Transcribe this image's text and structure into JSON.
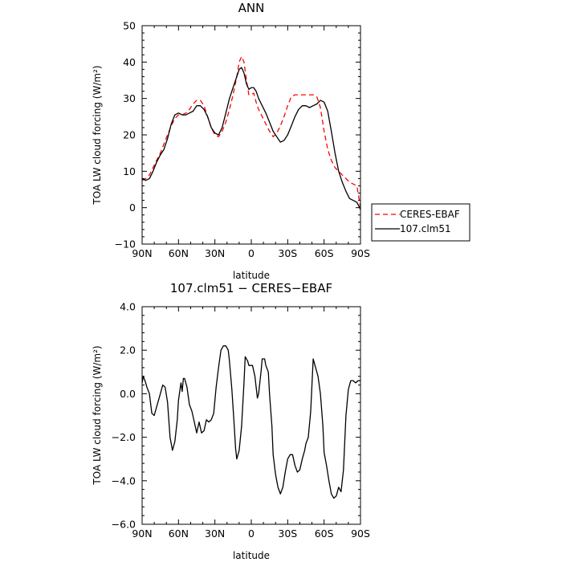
{
  "chart_data": [
    {
      "type": "line",
      "title": "ANN",
      "xlabel": "latitude",
      "ylabel": "TOA LW cloud forcing (W/m²)",
      "xlim": [
        90,
        -90
      ],
      "ylim": [
        -10,
        50
      ],
      "x_ticks": [
        90,
        60,
        30,
        0,
        -30,
        -60,
        -90
      ],
      "x_tick_labels": [
        "90N",
        "60N",
        "30N",
        "0",
        "30S",
        "60S",
        "90S"
      ],
      "y_ticks": [
        -10,
        0,
        10,
        20,
        30,
        40,
        50
      ],
      "y_tick_labels": [
        "−10",
        "0",
        "10",
        "20",
        "30",
        "40",
        "50"
      ],
      "legend": {
        "placement": "right",
        "entries": [
          "CERES-EBAF",
          "107.clm51"
        ]
      },
      "series": [
        {
          "name": "CERES-EBAF",
          "color": "#ff0000",
          "dash": "dashed",
          "x": [
            90,
            87,
            84,
            81,
            78,
            75,
            72,
            69,
            66,
            63,
            60,
            57,
            54,
            51,
            48,
            45,
            42,
            39,
            36,
            33,
            30,
            27,
            24,
            21,
            18,
            15,
            12,
            10,
            8,
            6,
            4,
            2,
            0,
            -2,
            -4,
            -6,
            -9,
            -12,
            -15,
            -18,
            -21,
            -24,
            -27,
            -30,
            -33,
            -36,
            -39,
            -42,
            -45,
            -48,
            -51,
            -54,
            -57,
            -60,
            -63,
            -66,
            -69,
            -72,
            -75,
            -78,
            -81,
            -84,
            -87,
            -90
          ],
          "y": [
            7.5,
            8.0,
            9.0,
            11.0,
            13.0,
            15.0,
            17.5,
            20.0,
            22.5,
            24.5,
            25.5,
            25.5,
            26.0,
            27.0,
            28.5,
            29.5,
            29.5,
            28.0,
            25.0,
            22.0,
            20.0,
            19.5,
            21.0,
            23.5,
            27.0,
            31.0,
            36.0,
            40.0,
            41.5,
            40.0,
            35.0,
            31.0,
            31.0,
            31.5,
            29.0,
            27.0,
            25.0,
            23.0,
            21.0,
            19.5,
            20.5,
            22.5,
            25.0,
            28.0,
            30.5,
            31.0,
            31.0,
            31.0,
            31.0,
            31.0,
            31.0,
            30.5,
            27.5,
            21.0,
            16.0,
            13.0,
            11.0,
            10.0,
            9.0,
            8.0,
            7.0,
            6.5,
            6.0,
            0.0
          ]
        },
        {
          "name": "107.clm51",
          "color": "#000000",
          "dash": "solid",
          "x": [
            90,
            87,
            84,
            81,
            78,
            75,
            72,
            69,
            66,
            63,
            60,
            57,
            54,
            51,
            48,
            45,
            42,
            39,
            36,
            33,
            30,
            27,
            24,
            21,
            18,
            15,
            12,
            10,
            8,
            6,
            4,
            2,
            0,
            -2,
            -4,
            -6,
            -9,
            -12,
            -15,
            -18,
            -21,
            -24,
            -27,
            -30,
            -33,
            -36,
            -39,
            -42,
            -45,
            -48,
            -51,
            -54,
            -57,
            -60,
            -63,
            -66,
            -69,
            -72,
            -75,
            -78,
            -81,
            -84,
            -87,
            -90
          ],
          "y": [
            8.0,
            7.5,
            8.0,
            10.0,
            12.5,
            14.5,
            16.0,
            19.0,
            23.0,
            25.5,
            26.0,
            25.5,
            25.5,
            26.0,
            26.5,
            28.0,
            28.0,
            27.0,
            25.0,
            22.0,
            20.5,
            20.0,
            22.0,
            26.0,
            30.0,
            33.0,
            36.0,
            38.0,
            38.5,
            37.0,
            34.0,
            32.5,
            33.0,
            33.0,
            32.0,
            30.0,
            28.0,
            26.0,
            23.5,
            21.0,
            19.5,
            18.0,
            18.5,
            20.0,
            22.5,
            25.0,
            27.0,
            28.0,
            28.0,
            27.5,
            28.0,
            28.5,
            29.5,
            29.0,
            26.5,
            21.0,
            15.0,
            10.0,
            7.0,
            4.5,
            2.5,
            2.0,
            1.5,
            -0.5
          ]
        }
      ]
    },
    {
      "type": "line",
      "title": "107.clm51 − CERES−EBAF",
      "xlabel": "latitude",
      "ylabel": "TOA LW cloud forcing (W/m²)",
      "xlim": [
        90,
        -90
      ],
      "ylim": [
        -6,
        4
      ],
      "x_ticks": [
        90,
        60,
        30,
        0,
        -30,
        -60,
        -90
      ],
      "x_tick_labels": [
        "90N",
        "60N",
        "30N",
        "0",
        "30S",
        "60S",
        "90S"
      ],
      "y_ticks": [
        -6,
        -4,
        -2,
        0,
        2,
        4
      ],
      "y_tick_labels": [
        "−6.0",
        "−4.0",
        "−2.0",
        "0.0",
        "2.0",
        "4.0"
      ],
      "series": [
        {
          "color": "#000000",
          "dash": "solid",
          "x": [
            90,
            89,
            87,
            86,
            84,
            82,
            80,
            78,
            76,
            75,
            73,
            71,
            69,
            67,
            65,
            63,
            61,
            60,
            58,
            57,
            56,
            55,
            53,
            51,
            49,
            47,
            45,
            43,
            41,
            39,
            37,
            35,
            33,
            31,
            29,
            27,
            25,
            23,
            21,
            19,
            18,
            16,
            14,
            13,
            12,
            10,
            8,
            6,
            5,
            3,
            2,
            0,
            -1,
            -3,
            -5,
            -6,
            -8,
            -9,
            -11,
            -12,
            -14,
            -15,
            -17,
            -18,
            -20,
            -22,
            -24,
            -26,
            -28,
            -30,
            -32,
            -34,
            -36,
            -38,
            -40,
            -42,
            -44,
            -45,
            -47,
            -49,
            -51,
            -53,
            -55,
            -57,
            -59,
            -60,
            -62,
            -64,
            -66,
            -68,
            -70,
            -72,
            -74,
            -76,
            -78,
            -80,
            -82,
            -84,
            -86,
            -88,
            -90
          ],
          "y": [
            0.5,
            0.8,
            0.5,
            0.3,
            0.0,
            -0.9,
            -1.0,
            -0.6,
            -0.2,
            0.0,
            0.4,
            0.3,
            -0.4,
            -2.0,
            -2.6,
            -2.2,
            -1.2,
            -0.3,
            0.5,
            0.1,
            0.7,
            0.7,
            0.3,
            -0.5,
            -0.8,
            -1.3,
            -1.8,
            -1.3,
            -1.8,
            -1.7,
            -1.2,
            -1.3,
            -1.2,
            -0.9,
            0.3,
            1.2,
            2.0,
            2.2,
            2.2,
            2.0,
            1.5,
            0.2,
            -1.5,
            -2.5,
            -3.0,
            -2.6,
            -1.5,
            0.5,
            1.7,
            1.5,
            1.3,
            1.3,
            1.3,
            0.8,
            -0.2,
            0.0,
            1.0,
            1.6,
            1.6,
            1.3,
            1.0,
            0.0,
            -1.5,
            -2.8,
            -3.7,
            -4.3,
            -4.6,
            -4.3,
            -3.6,
            -3.0,
            -2.8,
            -2.8,
            -3.3,
            -3.6,
            -3.5,
            -3.0,
            -2.6,
            -2.3,
            -2.0,
            -0.8,
            1.6,
            1.2,
            0.8,
            0.0,
            -1.5,
            -2.7,
            -3.3,
            -4.0,
            -4.6,
            -4.8,
            -4.7,
            -4.3,
            -4.5,
            -3.5,
            -1.0,
            0.2,
            0.6,
            0.6,
            0.5,
            0.6,
            0.6
          ]
        }
      ]
    }
  ]
}
